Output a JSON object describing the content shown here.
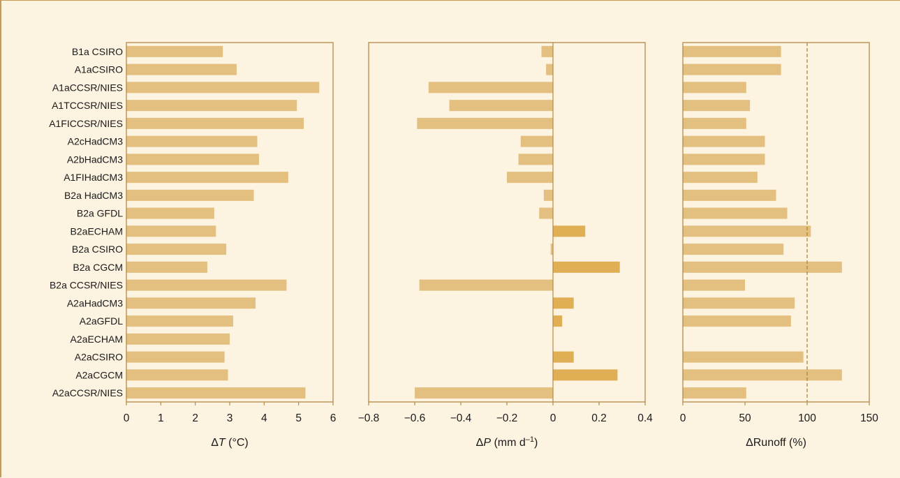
{
  "colors": {
    "background": "#fdf3e1",
    "frame": "#c99a55",
    "axis": "#b58a45",
    "bar": "#e3c07f",
    "bar_positive_dp": "#dfae55",
    "reference_line": "#b07a3a"
  },
  "chart_data": [
    {
      "type": "bar",
      "orientation": "horizontal",
      "categories": [
        "B1a CSIRO",
        "A1aCSIRO",
        "A1aCCSR/NIES",
        "A1TCCSR/NIES",
        "A1FICCSR/NIES",
        "A2cHadCM3",
        "A2bHadCM3",
        "A1FIHadCM3",
        "B2a HadCM3",
        "B2a GFDL",
        "B2aECHAM",
        "B2a CSIRO",
        "B2a CGCM",
        "B2a CCSR/NIES",
        "A2aHadCM3",
        "A2aGFDL",
        "A2aECHAM",
        "A2aCSIRO",
        "A2aCGCM",
        "A2aCCSR/NIES"
      ],
      "values": [
        2.8,
        3.2,
        5.6,
        4.95,
        5.15,
        3.8,
        3.85,
        4.7,
        3.7,
        2.55,
        2.6,
        2.9,
        2.35,
        4.65,
        3.75,
        3.1,
        3.0,
        2.85,
        2.95,
        5.2
      ],
      "xlim": [
        0,
        6
      ],
      "xticks": [
        "0",
        "1",
        "2",
        "3",
        "4",
        "5",
        "6"
      ],
      "xlabel_prefix": "Δ",
      "xlabel_var": "T",
      "xlabel_unit": " (°C)",
      "grid": false
    },
    {
      "type": "bar",
      "orientation": "horizontal",
      "categories": [
        "B1a CSIRO",
        "A1aCSIRO",
        "A1aCCSR/NIES",
        "A1TCCSR/NIES",
        "A1FICCSR/NIES",
        "A2cHadCM3",
        "A2bHadCM3",
        "A1FIHadCM3",
        "B2a HadCM3",
        "B2a GFDL",
        "B2aECHAM",
        "B2a CSIRO",
        "B2a CGCM",
        "B2a CCSR/NIES",
        "A2aHadCM3",
        "A2aGFDL",
        "A2aECHAM",
        "A2aCSIRO",
        "A2aCGCM",
        "A2aCCSR/NIES"
      ],
      "values": [
        -0.05,
        -0.03,
        -0.54,
        -0.45,
        -0.59,
        -0.14,
        -0.15,
        -0.2,
        -0.04,
        -0.06,
        0.14,
        -0.01,
        0.29,
        -0.58,
        0.09,
        0.04,
        0,
        0.09,
        0.28,
        -0.6
      ],
      "xlim": [
        -0.8,
        0.4
      ],
      "xticks": [
        "−0.8",
        "−0.6",
        "−0.4",
        "−0.2",
        "0",
        "0.2",
        "0.4"
      ],
      "xlabel_prefix": "Δ",
      "xlabel_var": "P",
      "xlabel_unit": " (mm d",
      "xlabel_sup": "–1",
      "xlabel_close": ")",
      "grid": false
    },
    {
      "type": "bar",
      "orientation": "horizontal",
      "categories": [
        "B1a CSIRO",
        "A1aCSIRO",
        "A1aCCSR/NIES",
        "A1TCCSR/NIES",
        "A1FICCSR/NIES",
        "A2cHadCM3",
        "A2bHadCM3",
        "A1FIHadCM3",
        "B2a HadCM3",
        "B2a GFDL",
        "B2aECHAM",
        "B2a CSIRO",
        "B2a CGCM",
        "B2a CCSR/NIES",
        "A2aHadCM3",
        "A2aGFDL",
        "A2aECHAM",
        "A2aCSIRO",
        "A2aCGCM",
        "A2aCCSR/NIES"
      ],
      "values": [
        79,
        79,
        51,
        54,
        51,
        66,
        66,
        60,
        75,
        84,
        103,
        81,
        128,
        50,
        90,
        87,
        null,
        97,
        128,
        51
      ],
      "xlim": [
        0,
        150
      ],
      "xticks": [
        "0",
        "50",
        "100",
        "150"
      ],
      "reference_line": 100,
      "xlabel_prefix": "Δ",
      "xlabel_var": "Runoff",
      "xlabel_unit": " (%)",
      "grid": false
    }
  ]
}
